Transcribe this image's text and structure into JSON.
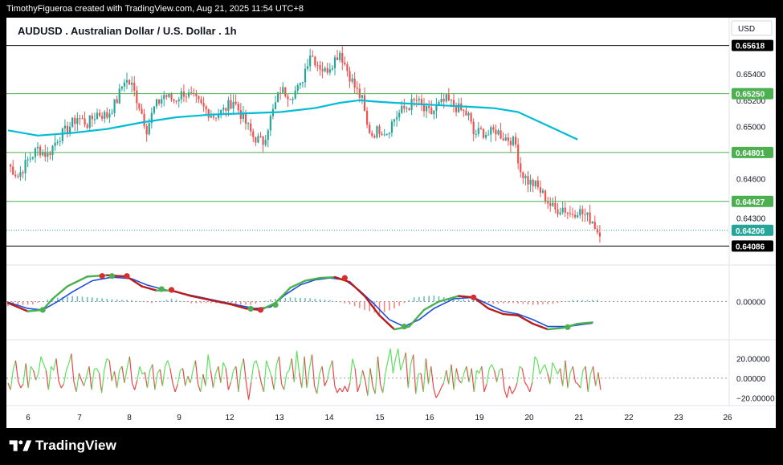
{
  "header": {
    "credit": "TimothyFigueroa created with TradingView.com, Aug 21, 2025 11:54 UTC+8"
  },
  "footer": {
    "brand": "TradingView",
    "logo_icon": "tradingview-logo-icon"
  },
  "chart_data": [
    {
      "type": "candlestick",
      "title": "AUDUSD . Australian Dollar / U.S. Dollar . 1h",
      "currency": "USD",
      "x_ticks": [
        "6",
        "7",
        "8",
        "9",
        "12",
        "13",
        "14",
        "15",
        "16",
        "19",
        "20",
        "21",
        "22",
        "23",
        "26"
      ],
      "y_ticks": [
        "0.65400",
        "0.65200",
        "0.65000",
        "0.64600",
        "0.64300"
      ],
      "ylim": [
        0.6399,
        0.658
      ],
      "level_lines": [
        {
          "value": 0.65618,
          "label": "0.65618",
          "color": "#000000"
        },
        {
          "value": 0.6525,
          "label": "0.65250",
          "color": "#4caf50"
        },
        {
          "value": 0.64801,
          "label": "0.64801",
          "color": "#4caf50"
        },
        {
          "value": 0.64427,
          "label": "0.64427",
          "color": "#4caf50"
        },
        {
          "value": 0.64086,
          "label": "0.64086",
          "color": "#000000"
        }
      ],
      "last_price": {
        "value": 0.64206,
        "label": "0.64206",
        "color": "#26a69a"
      },
      "colors": {
        "up": "#26a69a",
        "down": "#ef5350",
        "ma": "#00bcd4"
      },
      "close_path": [
        [
          0,
          0.6471
        ],
        [
          4,
          0.6462
        ],
        [
          8,
          0.6474
        ],
        [
          12,
          0.6483
        ],
        [
          16,
          0.6478
        ],
        [
          20,
          0.6491
        ],
        [
          24,
          0.6498
        ],
        [
          28,
          0.6507
        ],
        [
          32,
          0.6502
        ],
        [
          36,
          0.651
        ],
        [
          40,
          0.6508
        ],
        [
          44,
          0.652
        ],
        [
          47,
          0.6536
        ],
        [
          50,
          0.6531
        ],
        [
          53,
          0.6516
        ],
        [
          56,
          0.6498
        ],
        [
          59,
          0.6514
        ],
        [
          63,
          0.6524
        ],
        [
          67,
          0.652
        ],
        [
          71,
          0.6526
        ],
        [
          75,
          0.6521
        ],
        [
          79,
          0.6514
        ],
        [
          83,
          0.6508
        ],
        [
          87,
          0.6512
        ],
        [
          91,
          0.652
        ],
        [
          95,
          0.6506
        ],
        [
          99,
          0.6492
        ],
        [
          103,
          0.6488
        ],
        [
          106,
          0.6506
        ],
        [
          110,
          0.6528
        ],
        [
          114,
          0.6524
        ],
        [
          118,
          0.653
        ],
        [
          120,
          0.6544
        ],
        [
          122,
          0.6556
        ],
        [
          125,
          0.6548
        ],
        [
          128,
          0.6542
        ],
        [
          131,
          0.6549
        ],
        [
          134,
          0.6557
        ],
        [
          137,
          0.6543
        ],
        [
          140,
          0.653
        ],
        [
          143,
          0.652
        ],
        [
          145,
          0.65
        ],
        [
          147,
          0.6494
        ],
        [
          150,
          0.6498
        ],
        [
          153,
          0.6496
        ],
        [
          156,
          0.6506
        ],
        [
          159,
          0.6512
        ],
        [
          162,
          0.6516
        ],
        [
          165,
          0.652
        ],
        [
          168,
          0.6512
        ],
        [
          171,
          0.651
        ],
        [
          174,
          0.6516
        ],
        [
          177,
          0.652
        ],
        [
          180,
          0.6516
        ],
        [
          183,
          0.6512
        ],
        [
          186,
          0.6508
        ],
        [
          188,
          0.6494
        ],
        [
          191,
          0.6496
        ],
        [
          194,
          0.6494
        ],
        [
          197,
          0.6497
        ],
        [
          200,
          0.6492
        ],
        [
          203,
          0.649
        ],
        [
          205,
          0.6486
        ],
        [
          207,
          0.6466
        ],
        [
          210,
          0.6458
        ],
        [
          213,
          0.6455
        ],
        [
          216,
          0.6448
        ],
        [
          219,
          0.644
        ],
        [
          221,
          0.6436
        ],
        [
          224,
          0.6438
        ],
        [
          227,
          0.6433
        ],
        [
          230,
          0.6436
        ],
        [
          233,
          0.6432
        ],
        [
          236,
          0.6428
        ],
        [
          238,
          0.642
        ]
      ],
      "ma_path": [
        [
          0,
          0.6497
        ],
        [
          12,
          0.6493
        ],
        [
          26,
          0.6495
        ],
        [
          40,
          0.6498
        ],
        [
          54,
          0.6503
        ],
        [
          68,
          0.6507
        ],
        [
          82,
          0.6509
        ],
        [
          96,
          0.651
        ],
        [
          110,
          0.6511
        ],
        [
          124,
          0.6514
        ],
        [
          134,
          0.6518
        ],
        [
          142,
          0.652
        ],
        [
          148,
          0.6519
        ],
        [
          156,
          0.6518
        ],
        [
          166,
          0.6517
        ],
        [
          176,
          0.6516
        ],
        [
          186,
          0.6515
        ],
        [
          196,
          0.6514
        ],
        [
          206,
          0.6511
        ],
        [
          214,
          0.6504
        ],
        [
          222,
          0.6497
        ],
        [
          230,
          0.649
        ]
      ]
    },
    {
      "type": "line",
      "title": "",
      "y_ticks": [
        "0.00000"
      ],
      "ylim": [
        -1.2,
        1.2
      ],
      "colors": {
        "fast_up": "#4caf50",
        "fast_down": "#b71c1c",
        "slow": "#1e4fd8",
        "dot_up": "#4caf50",
        "dot_down": "#d32f2f"
      },
      "fast": [
        [
          0,
          -0.05
        ],
        [
          8,
          -0.35
        ],
        [
          14,
          -0.3
        ],
        [
          18,
          0.1
        ],
        [
          24,
          0.55
        ],
        [
          32,
          0.9
        ],
        [
          40,
          0.95
        ],
        [
          48,
          0.9
        ],
        [
          54,
          0.55
        ],
        [
          60,
          0.4
        ],
        [
          66,
          0.4
        ],
        [
          74,
          0.2
        ],
        [
          82,
          0.05
        ],
        [
          90,
          -0.1
        ],
        [
          96,
          -0.25
        ],
        [
          102,
          -0.3
        ],
        [
          108,
          -0.05
        ],
        [
          114,
          0.5
        ],
        [
          120,
          0.75
        ],
        [
          126,
          0.85
        ],
        [
          132,
          0.88
        ],
        [
          138,
          0.7
        ],
        [
          144,
          0.2
        ],
        [
          150,
          -0.5
        ],
        [
          156,
          -1.0
        ],
        [
          162,
          -0.9
        ],
        [
          168,
          -0.3
        ],
        [
          174,
          0.0
        ],
        [
          182,
          0.2
        ],
        [
          188,
          0.15
        ],
        [
          194,
          -0.25
        ],
        [
          200,
          -0.45
        ],
        [
          206,
          -0.5
        ],
        [
          212,
          -0.8
        ],
        [
          218,
          -1.0
        ],
        [
          224,
          -0.95
        ],
        [
          230,
          -0.8
        ],
        [
          236,
          -0.75
        ]
      ],
      "slow": [
        [
          0,
          -0.02
        ],
        [
          8,
          -0.25
        ],
        [
          14,
          -0.3
        ],
        [
          20,
          0.0
        ],
        [
          26,
          0.35
        ],
        [
          34,
          0.75
        ],
        [
          42,
          0.88
        ],
        [
          50,
          0.82
        ],
        [
          56,
          0.6
        ],
        [
          62,
          0.45
        ],
        [
          70,
          0.3
        ],
        [
          78,
          0.15
        ],
        [
          86,
          0.0
        ],
        [
          94,
          -0.15
        ],
        [
          100,
          -0.25
        ],
        [
          106,
          -0.2
        ],
        [
          112,
          0.25
        ],
        [
          118,
          0.6
        ],
        [
          124,
          0.78
        ],
        [
          130,
          0.85
        ],
        [
          136,
          0.78
        ],
        [
          142,
          0.4
        ],
        [
          148,
          -0.1
        ],
        [
          154,
          -0.65
        ],
        [
          160,
          -0.9
        ],
        [
          166,
          -0.65
        ],
        [
          172,
          -0.25
        ],
        [
          180,
          0.1
        ],
        [
          188,
          0.15
        ],
        [
          194,
          -0.1
        ],
        [
          200,
          -0.35
        ],
        [
          206,
          -0.45
        ],
        [
          212,
          -0.65
        ],
        [
          218,
          -0.9
        ],
        [
          226,
          -0.9
        ],
        [
          232,
          -0.82
        ],
        [
          236,
          -0.78
        ]
      ],
      "hist": [
        [
          2,
          -0.15
        ],
        [
          10,
          -0.1
        ],
        [
          18,
          0.12
        ],
        [
          26,
          0.2
        ],
        [
          34,
          0.15
        ],
        [
          42,
          0.08
        ],
        [
          50,
          0.05
        ],
        [
          58,
          -0.05
        ],
        [
          66,
          0.1
        ],
        [
          74,
          -0.06
        ],
        [
          82,
          -0.05
        ],
        [
          90,
          -0.1
        ],
        [
          98,
          -0.12
        ],
        [
          106,
          0.08
        ],
        [
          114,
          0.15
        ],
        [
          122,
          0.12
        ],
        [
          130,
          0.05
        ],
        [
          138,
          -0.1
        ],
        [
          144,
          -0.3
        ],
        [
          150,
          -0.45
        ],
        [
          156,
          -0.25
        ],
        [
          164,
          0.15
        ],
        [
          172,
          0.22
        ],
        [
          180,
          0.1
        ],
        [
          188,
          0.06
        ],
        [
          196,
          -0.08
        ],
        [
          204,
          -0.05
        ],
        [
          212,
          -0.12
        ],
        [
          220,
          -0.08
        ],
        [
          228,
          0.05
        ],
        [
          236,
          0.06
        ]
      ],
      "dots": [
        [
          14,
          -0.3,
          "up"
        ],
        [
          38,
          0.92,
          "down"
        ],
        [
          42,
          0.92,
          "up"
        ],
        [
          48,
          0.92,
          "down"
        ],
        [
          62,
          0.45,
          "up"
        ],
        [
          66,
          0.42,
          "down"
        ],
        [
          98,
          -0.26,
          "up"
        ],
        [
          102,
          -0.3,
          "down"
        ],
        [
          108,
          -0.12,
          "up"
        ],
        [
          136,
          0.85,
          "down"
        ],
        [
          160,
          -0.9,
          "up"
        ],
        [
          188,
          0.15,
          "down"
        ],
        [
          226,
          -0.92,
          "up"
        ]
      ]
    },
    {
      "type": "line",
      "title": "",
      "y_ticks": [
        "20.00000",
        "0.00000",
        "−20.00000"
      ],
      "ylim": [
        -28,
        36
      ],
      "colors": {
        "up": "#5ee25e",
        "down": "#e84848"
      },
      "values": [
        -5,
        -12,
        8,
        18,
        -3,
        -10,
        -6,
        15,
        -10,
        12,
        8,
        -2,
        5,
        22,
        15,
        8,
        -12,
        12,
        8,
        20,
        -3,
        -10,
        -6,
        8,
        15,
        25,
        -4,
        -14,
        5,
        -2,
        -8,
        2,
        12,
        -12,
        9,
        10,
        5,
        -15,
        8,
        20,
        18,
        -3,
        7,
        -10,
        8,
        12,
        -5,
        10,
        22,
        -5,
        -12,
        -2,
        12,
        4,
        6,
        -10,
        8,
        14,
        -12,
        5,
        9,
        -8,
        12,
        18,
        10,
        -5,
        -14,
        -6,
        8,
        10,
        -8,
        2,
        -5,
        8,
        18,
        -6,
        -14,
        4,
        -8,
        24,
        8,
        -10,
        5,
        12,
        -5,
        16,
        10,
        -12,
        -4,
        8,
        12,
        -14,
        10,
        20,
        -4,
        -22,
        -4,
        15,
        18,
        8,
        -5,
        -14,
        18,
        10,
        2,
        -12,
        14,
        22,
        -6,
        -12,
        5,
        8,
        20,
        -4,
        28,
        5,
        -10,
        22,
        -10,
        10,
        24,
        -8,
        -16,
        5,
        12,
        -8,
        -2,
        10,
        18,
        -8,
        -15,
        -10,
        -14,
        -8,
        -14,
        -5,
        20,
        10,
        -14,
        -6,
        8,
        -2,
        -18,
        10,
        -8,
        -16,
        22,
        -6,
        -15,
        5,
        18,
        30,
        5,
        20,
        30,
        8,
        16,
        26,
        -10,
        14,
        24,
        -16,
        4,
        5,
        -14,
        20,
        -6,
        12,
        -10,
        -20,
        -16,
        -10,
        -5,
        8,
        -6,
        14,
        -12,
        10,
        -2,
        -5,
        5,
        12,
        -4,
        10,
        -14,
        8,
        5,
        12,
        -14,
        -6,
        10,
        14,
        8,
        -4,
        8,
        10,
        -12,
        -20,
        -8,
        -16,
        -12,
        -5,
        12,
        10,
        -4,
        -8,
        -14,
        -4,
        22,
        18,
        4,
        10,
        14,
        5,
        -6,
        16,
        10,
        4,
        10,
        -8,
        18,
        -10,
        6,
        12,
        -4,
        -6,
        -10,
        8,
        12,
        -14,
        4,
        12,
        -8,
        6,
        -12
      ]
    }
  ]
}
